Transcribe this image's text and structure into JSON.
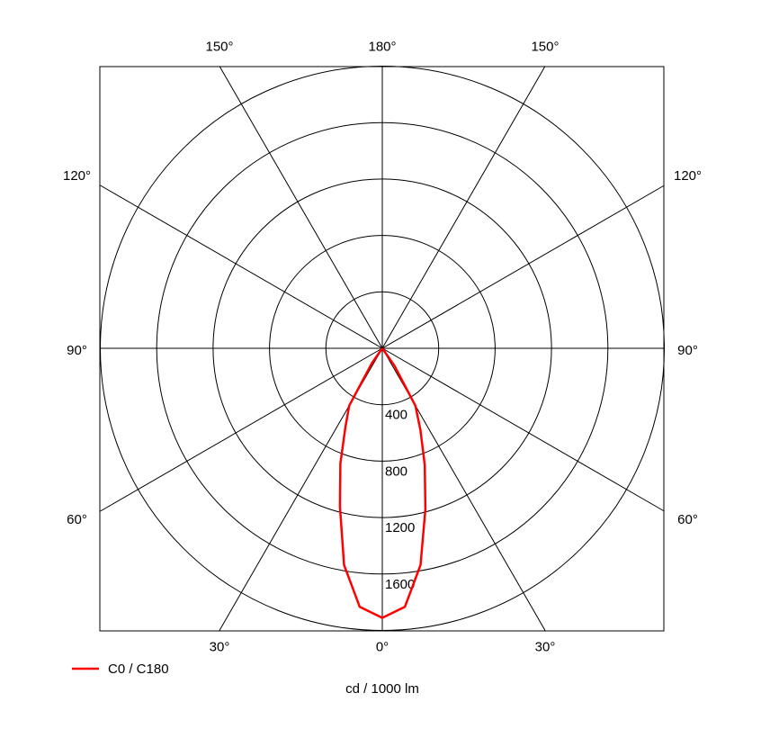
{
  "chart_data": {
    "type": "polar",
    "x_label": "cd / 1000 lm",
    "rlim": [
      0,
      2000
    ],
    "rticks": [
      400,
      800,
      1200,
      1600
    ],
    "angle_ticks": [
      {
        "value": -150,
        "label": "150°"
      },
      {
        "value": 180,
        "label": "180°"
      },
      {
        "value": 150,
        "label": "150°"
      },
      {
        "value": -120,
        "label": "120°"
      },
      {
        "value": 120,
        "label": "120°"
      },
      {
        "value": -90,
        "label": "90°"
      },
      {
        "value": 90,
        "label": "90°"
      },
      {
        "value": -60,
        "label": "60°"
      },
      {
        "value": 60,
        "label": "60°"
      },
      {
        "value": -30,
        "label": "30°"
      },
      {
        "value": 0,
        "label": "0°"
      },
      {
        "value": 30,
        "label": "30°"
      }
    ],
    "series": [
      {
        "name": "C0 / C180",
        "color": "#ff0000",
        "angles": [
          -90,
          -85,
          -80,
          -75,
          -70,
          -65,
          -60,
          -55,
          -50,
          -45,
          -40,
          -35,
          -30,
          -25,
          -20,
          -15,
          -10,
          -5,
          0,
          5,
          10,
          15,
          20,
          25,
          30,
          35,
          40,
          45,
          50,
          55,
          60,
          65,
          70,
          75,
          80,
          85,
          90
        ],
        "values": [
          0,
          0,
          0,
          0,
          0,
          0,
          0,
          0,
          0,
          0,
          0,
          130,
          470,
          620,
          870,
          1160,
          1560,
          1840,
          1911,
          1840,
          1560,
          1180,
          880,
          640,
          470,
          150,
          0,
          0,
          0,
          0,
          0,
          0,
          0,
          0,
          0,
          0,
          0
        ]
      }
    ]
  }
}
